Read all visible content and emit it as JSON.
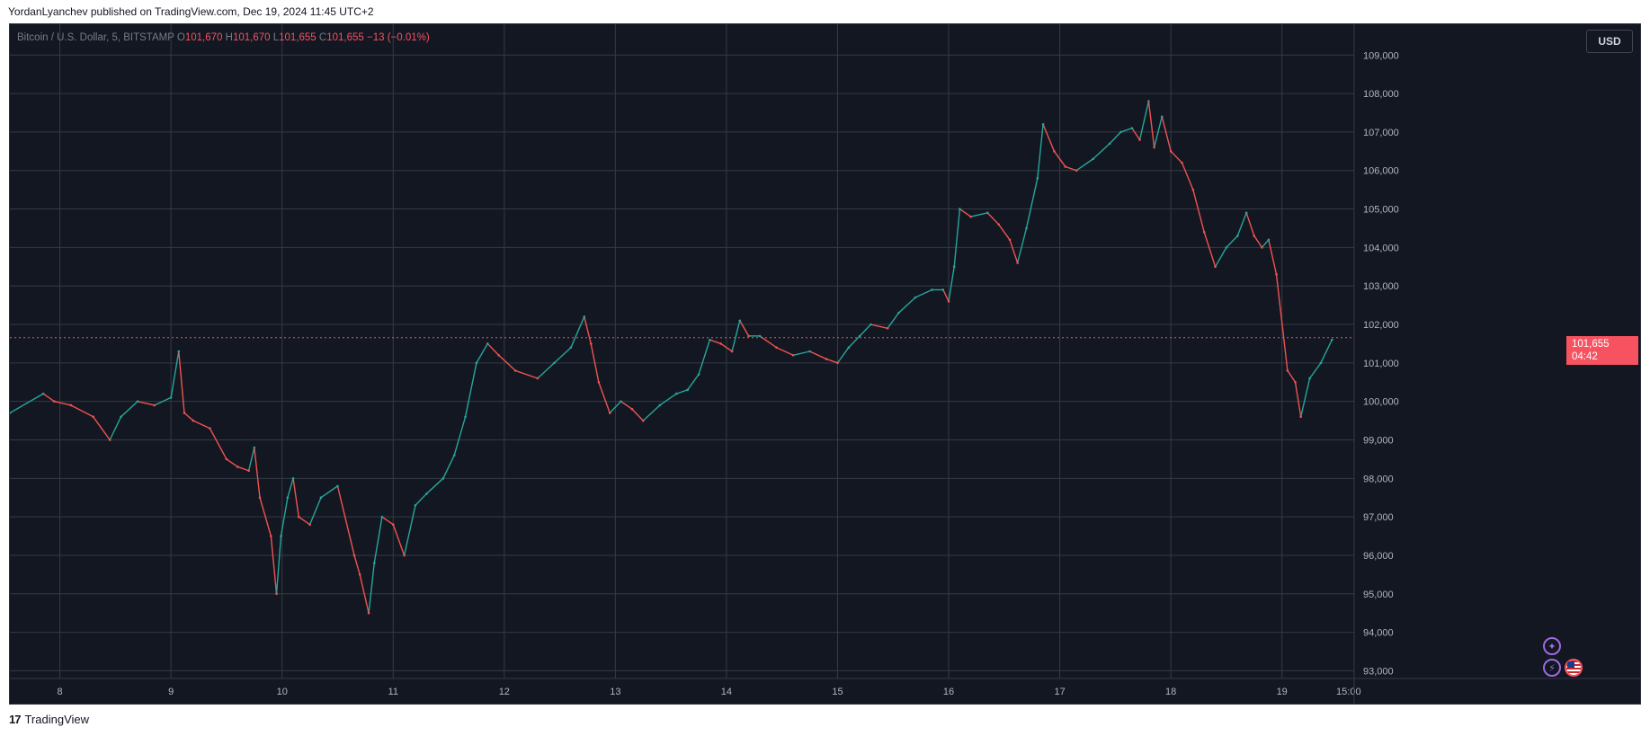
{
  "header": {
    "publish_line": "YordanLyanchev published on TradingView.com, Dec 19, 2024 11:45 UTC+2"
  },
  "legend": {
    "symbol": "Bitcoin / U.S. Dollar, 5, BITSTAMP",
    "o_label": "O",
    "o_value": "101,670",
    "h_label": "H",
    "h_value": "101,670",
    "l_label": "L",
    "l_value": "101,655",
    "c_label": "C",
    "c_value": "101,655",
    "change": "−13 (−0.01%)"
  },
  "currency_button": "USD",
  "price_tag": {
    "price": "101,655",
    "countdown": "04:42"
  },
  "footer": {
    "brand": "TradingView",
    "logo": "17"
  },
  "icons": {
    "event1": "lightning-icon",
    "event2": "plus-star-icon",
    "flag": "us-flag-icon"
  },
  "colors": {
    "background": "#131722",
    "grid": "#363a45",
    "up": "#26a69a",
    "down": "#ef5350",
    "text": "#b2b5be",
    "accent": "#f7525f"
  },
  "chart_data": {
    "type": "line",
    "title": "Bitcoin / U.S. Dollar, 5, BITSTAMP",
    "xlabel": "",
    "ylabel": "",
    "ylim": [
      92800,
      109800
    ],
    "xlim": [
      7.55,
      19.65
    ],
    "grid": true,
    "x_ticks": [
      8,
      9,
      10,
      11,
      12,
      13,
      14,
      15,
      16,
      17,
      18,
      19
    ],
    "x_tick_labels": [
      "8",
      "9",
      "10",
      "11",
      "12",
      "13",
      "14",
      "15",
      "16",
      "17",
      "18",
      "19"
    ],
    "x_end_label": "15:00",
    "y_ticks": [
      93000,
      94000,
      95000,
      96000,
      97000,
      98000,
      99000,
      100000,
      101000,
      102000,
      103000,
      104000,
      105000,
      106000,
      107000,
      108000,
      109000
    ],
    "y_tick_labels": [
      "93,000",
      "94,000",
      "95,000",
      "96,000",
      "97,000",
      "98,000",
      "99,000",
      "100,000",
      "101,000",
      "102,000",
      "103,000",
      "104,000",
      "105,000",
      "106,000",
      "107,000",
      "108,000",
      "109,000"
    ],
    "last_price": 101655,
    "series": [
      {
        "x": [
          7.55,
          7.85,
          7.95,
          8.1,
          8.3,
          8.45,
          8.55,
          8.7,
          8.85,
          9.0,
          9.07,
          9.12,
          9.2,
          9.35,
          9.5,
          9.6,
          9.7,
          9.75,
          9.8,
          9.9,
          9.95,
          9.99,
          10.05,
          10.1,
          10.15,
          10.25,
          10.35,
          10.5,
          10.65,
          10.7,
          10.78,
          10.83,
          10.9,
          11.0,
          11.1,
          11.2,
          11.3,
          11.45,
          11.55,
          11.65,
          11.75,
          11.85,
          11.95,
          12.1,
          12.3,
          12.45,
          12.6,
          12.72,
          12.78,
          12.85,
          12.95,
          13.05,
          13.15,
          13.25,
          13.4,
          13.55,
          13.65,
          13.75,
          13.85,
          13.95,
          14.05,
          14.12,
          14.2,
          14.3,
          14.45,
          14.6,
          14.75,
          14.9,
          15.0,
          15.1,
          15.2,
          15.3,
          15.45,
          15.55,
          15.7,
          15.85,
          15.95,
          16.0,
          16.05,
          16.1,
          16.2,
          16.35,
          16.45,
          16.55,
          16.62,
          16.7,
          16.8,
          16.85,
          16.95,
          17.05,
          17.15,
          17.3,
          17.45,
          17.55,
          17.65,
          17.72,
          17.8,
          17.85,
          17.92,
          18.0,
          18.1,
          18.2,
          18.3,
          18.4,
          18.5,
          18.6,
          18.68,
          18.75,
          18.82,
          18.88,
          18.95,
          19.05,
          19.12,
          19.17,
          19.25,
          19.35,
          19.45
        ],
        "y": [
          99700,
          100200,
          100000,
          99900,
          99600,
          99000,
          99600,
          100000,
          99900,
          100100,
          101300,
          99700,
          99500,
          99300,
          98500,
          98300,
          98200,
          98800,
          97500,
          96500,
          95000,
          96500,
          97500,
          98000,
          97000,
          96800,
          97500,
          97800,
          96000,
          95500,
          94500,
          95800,
          97000,
          96800,
          96000,
          97300,
          97600,
          98000,
          98600,
          99600,
          101000,
          101500,
          101200,
          100800,
          100600,
          101000,
          101400,
          102200,
          101500,
          100500,
          99700,
          100000,
          99800,
          99500,
          99900,
          100200,
          100300,
          100700,
          101600,
          101500,
          101300,
          102100,
          101700,
          101700,
          101400,
          101200,
          101300,
          101100,
          101000,
          101400,
          101700,
          102000,
          101900,
          102300,
          102700,
          102900,
          102900,
          102600,
          103500,
          105000,
          104800,
          104900,
          104600,
          104200,
          103600,
          104500,
          105800,
          107200,
          106500,
          106100,
          106000,
          106300,
          106700,
          107000,
          107100,
          106800,
          107800,
          106600,
          107400,
          106500,
          106200,
          105500,
          104400,
          103500,
          104000,
          104300,
          104900,
          104300,
          104000,
          104200,
          103300,
          100800,
          100500,
          99600,
          100600,
          101000,
          101600
        ]
      }
    ]
  }
}
